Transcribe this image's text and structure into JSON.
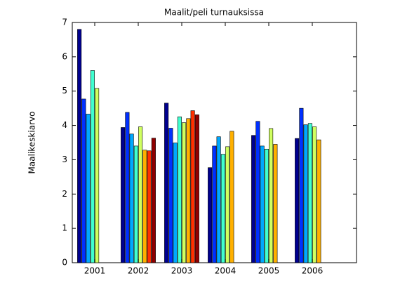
{
  "chart_data": {
    "type": "bar",
    "title": "Maalit/peli turnauksissa",
    "y_label": "Maalikeskiarvo",
    "categories": [
      "2001",
      "2002",
      "2003",
      "2004",
      "2005",
      "2006"
    ],
    "series": [
      {
        "color": "#00008f",
        "values": [
          6.8,
          3.94,
          4.65,
          2.77,
          3.71,
          3.62
        ]
      },
      {
        "color": "#0030ff",
        "values": [
          4.77,
          4.38,
          3.92,
          3.4,
          4.12,
          4.5
        ]
      },
      {
        "color": "#00a8ff",
        "values": [
          4.33,
          3.75,
          3.49,
          3.67,
          3.4,
          4.02
        ]
      },
      {
        "color": "#40ffd0",
        "values": [
          5.6,
          3.4,
          4.25,
          3.16,
          3.31,
          4.06
        ]
      },
      {
        "color": "#d0ff60",
        "values": [
          5.08,
          3.96,
          4.08,
          3.38,
          3.91,
          3.96
        ]
      },
      {
        "color": "#ffb000",
        "values": [
          null,
          3.28,
          4.2,
          3.83,
          3.45,
          3.58
        ]
      },
      {
        "color": "#ff3000",
        "values": [
          null,
          3.26,
          4.43,
          null,
          null,
          null
        ]
      },
      {
        "color": "#900000",
        "values": [
          null,
          3.63,
          4.31,
          null,
          null,
          null
        ]
      }
    ],
    "ylim": [
      0,
      7
    ],
    "yticks": [
      0,
      1,
      2,
      3,
      4,
      5,
      6,
      7
    ],
    "grid": false
  }
}
